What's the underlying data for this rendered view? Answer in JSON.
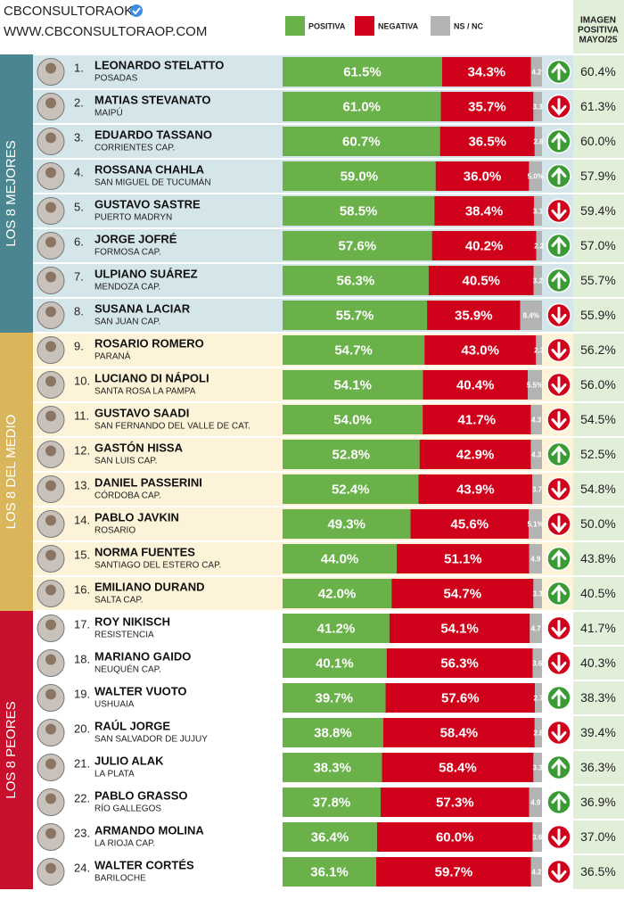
{
  "header": {
    "brand": "CBCONSULTORAOK",
    "site": "WWW.CBCONSULTORAOP.COM"
  },
  "chart_data": {
    "type": "stacked-bar-h",
    "xlim": [
      0,
      100
    ],
    "ranks": [
      "1.",
      "2.",
      "3.",
      "4.",
      "5.",
      "6.",
      "7.",
      "8.",
      "9.",
      "10.",
      "11.",
      "12.",
      "13.",
      "14.",
      "15.",
      "16.",
      "17.",
      "18.",
      "19.",
      "20.",
      "21.",
      "22.",
      "23.",
      "24."
    ],
    "categories": [
      "LEONARDO STELATTO",
      "MATIAS STEVANATO",
      "EDUARDO TASSANO",
      "ROSSANA CHAHLA",
      "GUSTAVO SASTRE",
      "JORGE JOFRÉ",
      "ULPIANO SUÁREZ",
      "SUSANA LACIAR",
      "ROSARIO ROMERO",
      "LUCIANO DI NÁPOLI",
      "GUSTAVO SAADI",
      "GASTÓN HISSA",
      "DANIEL PASSERINI",
      "PABLO JAVKIN",
      "NORMA FUENTES",
      "EMILIANO DURAND",
      "ROY NIKISCH",
      "MARIANO GAIDO",
      "WALTER VUOTO",
      "RAÚL JORGE",
      "JULIO ALAK",
      "PABLO GRASSO",
      "ARMANDO MOLINA",
      "WALTER CORTÉS"
    ],
    "places": [
      "POSADAS",
      "MAIPÚ",
      "CORRIENTES  CAP.",
      "SAN MIGUEL DE TUCUMÁN",
      "PUERTO MADRYN",
      "FORMOSA CAP.",
      "MENDOZA CAP.",
      "SAN JUAN CAP.",
      "PARANÁ",
      "SANTA ROSA LA PAMPA",
      "SAN FERNANDO DEL VALLE DE CAT.",
      "SAN LUIS CAP.",
      "CÓRDOBA CAP.",
      "ROSARIO",
      "SANTIAGO DEL ESTERO CAP.",
      "SALTA CAP.",
      "RESISTENCIA",
      "NEUQUÉN CAP.",
      "USHUAIA",
      "SAN SALVADOR DE JUJUY",
      "LA PLATA",
      "RÍO GALLEGOS",
      "LA RIOJA CAP.",
      "BARILOCHE"
    ],
    "series": [
      {
        "name": "POSITIVA",
        "color": "#6ab14a",
        "values": [
          61.5,
          61.0,
          60.7,
          59.0,
          58.5,
          57.6,
          56.3,
          55.7,
          54.7,
          54.1,
          54.0,
          52.8,
          52.4,
          49.3,
          44.0,
          42.0,
          41.2,
          40.1,
          39.7,
          38.8,
          38.3,
          37.8,
          36.4,
          36.1
        ],
        "value_labels": [
          "61.5%",
          "61.0%",
          "60.7%",
          "59.0%",
          "58.5%",
          "57.6%",
          "56.3%",
          "55.7%",
          "54.7%",
          "54.1%",
          "54.0%",
          "52.8%",
          "52.4%",
          "49.3%",
          "44.0%",
          "42.0%",
          "41.2%",
          "40.1%",
          "39.7%",
          "38.8%",
          "38.3%",
          "37.8%",
          "36.4%",
          "36.1%"
        ]
      },
      {
        "name": "NEGATIVA",
        "color": "#d0021b",
        "values": [
          34.3,
          35.7,
          36.5,
          36.0,
          38.4,
          40.2,
          40.5,
          35.9,
          43.0,
          40.4,
          41.7,
          42.9,
          43.9,
          45.6,
          51.1,
          54.7,
          54.1,
          56.3,
          57.6,
          58.4,
          58.4,
          57.3,
          60.0,
          59.7
        ],
        "value_labels": [
          "34.3%",
          "35.7%",
          "36.5%",
          "36.0%",
          "38.4%",
          "40.2%",
          "40.5%",
          "35.9%",
          "43.0%",
          "40.4%",
          "41.7%",
          "42.9%",
          "43.9%",
          "45.6%",
          "51.1%",
          "54.7%",
          "54.1%",
          "56.3%",
          "57.6%",
          "58.4%",
          "58.4%",
          "57.3%",
          "60.0%",
          "59.7%"
        ]
      },
      {
        "name": "NS / NC",
        "color": "#b3b3b3",
        "values": [
          4.2,
          3.3,
          2.8,
          5.0,
          3.1,
          2.2,
          3.2,
          8.4,
          2.3,
          5.5,
          4.3,
          4.3,
          3.7,
          5.1,
          4.9,
          3.3,
          4.7,
          3.6,
          2.7,
          2.8,
          3.3,
          4.9,
          3.6,
          4.2
        ],
        "value_labels": [
          "4.2",
          "3.3",
          "2.8",
          "5.0%",
          "3.1",
          "2.2",
          "3.2",
          "8.4%",
          "2.3",
          "5.5%",
          "4.3",
          "4.3",
          "3.7",
          "5.1%",
          "4.9",
          "3.3",
          "4.7",
          "3.6",
          "2.7",
          "2.8",
          "3.3",
          "4.9",
          "3.6",
          "4.2"
        ]
      }
    ],
    "trend": [
      "up",
      "down",
      "up",
      "up",
      "down",
      "up",
      "up",
      "down",
      "down",
      "down",
      "down",
      "up",
      "down",
      "down",
      "up",
      "up",
      "down",
      "down",
      "up",
      "down",
      "up",
      "up",
      "down",
      "down"
    ],
    "trend_colors": {
      "up": "#3a9b35",
      "down": "#d0021b"
    },
    "previous": {
      "title_lines": [
        "IMAGEN",
        "POSITIVA",
        "MAYO/25"
      ],
      "color": "#e1efd8",
      "values": [
        "60.4%",
        "61.3%",
        "60.0%",
        "57.9%",
        "59.4%",
        "57.0%",
        "55.7%",
        "55.9%",
        "56.2%",
        "56.0%",
        "54.5%",
        "52.5%",
        "54.8%",
        "50.0%",
        "43.8%",
        "40.5%",
        "41.7%",
        "40.3%",
        "38.3%",
        "39.4%",
        "36.3%",
        "36.9%",
        "37.0%",
        "36.5%"
      ]
    },
    "groups": [
      {
        "label": "LOS 8 MEJORES",
        "color": "#4b8690",
        "background": "#d5e6eb"
      },
      {
        "label": "LOS 8 DEL MEDIO",
        "color": "#d9b55c",
        "background": "#fcf3d8"
      },
      {
        "label": "LOS 8 PEORES",
        "color": "#c8102e",
        "background": "#ffffff"
      }
    ]
  }
}
